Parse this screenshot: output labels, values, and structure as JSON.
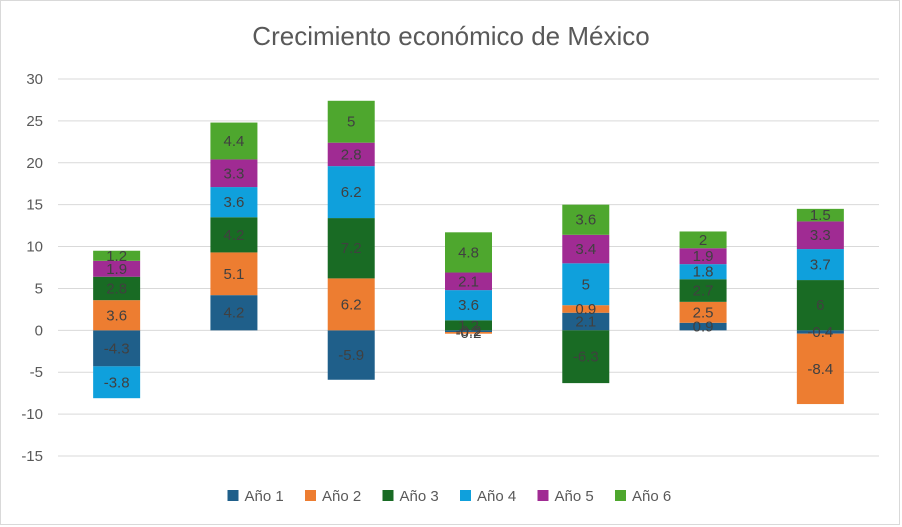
{
  "chart_data": {
    "type": "bar",
    "stacked": true,
    "title": "Crecimiento económico de México",
    "xlabel": "",
    "ylabel": "",
    "categories": [
      "",
      "",
      "",
      "",
      "",
      "",
      ""
    ],
    "ylim": [
      -15,
      30
    ],
    "yticks": [
      30,
      25,
      20,
      15,
      10,
      5,
      0,
      -5,
      -10,
      -15
    ],
    "grid": true,
    "legend_position": "bottom",
    "series": [
      {
        "name": "Año 1",
        "color": "#1f5f8a",
        "values": [
          -4.3,
          4.2,
          -5.9,
          -0.2,
          2.1,
          0.9,
          -0.4
        ]
      },
      {
        "name": "Año 2",
        "color": "#ed7d31",
        "values": [
          3.6,
          5.1,
          6.2,
          -0.2,
          0.9,
          2.5,
          -8.4
        ]
      },
      {
        "name": "Año 3",
        "color": "#196b24",
        "values": [
          2.8,
          4.2,
          7.2,
          1.2,
          -6.3,
          2.7,
          6
        ]
      },
      {
        "name": "Año 4",
        "color": "#0fa0dc",
        "values": [
          -3.8,
          3.6,
          6.2,
          3.6,
          5,
          1.8,
          3.7
        ]
      },
      {
        "name": "Año 5",
        "color": "#a02b93",
        "values": [
          1.9,
          3.3,
          2.8,
          2.1,
          3.4,
          1.9,
          3.3
        ]
      },
      {
        "name": "Año 6",
        "color": "#4ea72e",
        "values": [
          1.2,
          4.4,
          5,
          4.8,
          3.6,
          2,
          1.5
        ]
      }
    ]
  }
}
